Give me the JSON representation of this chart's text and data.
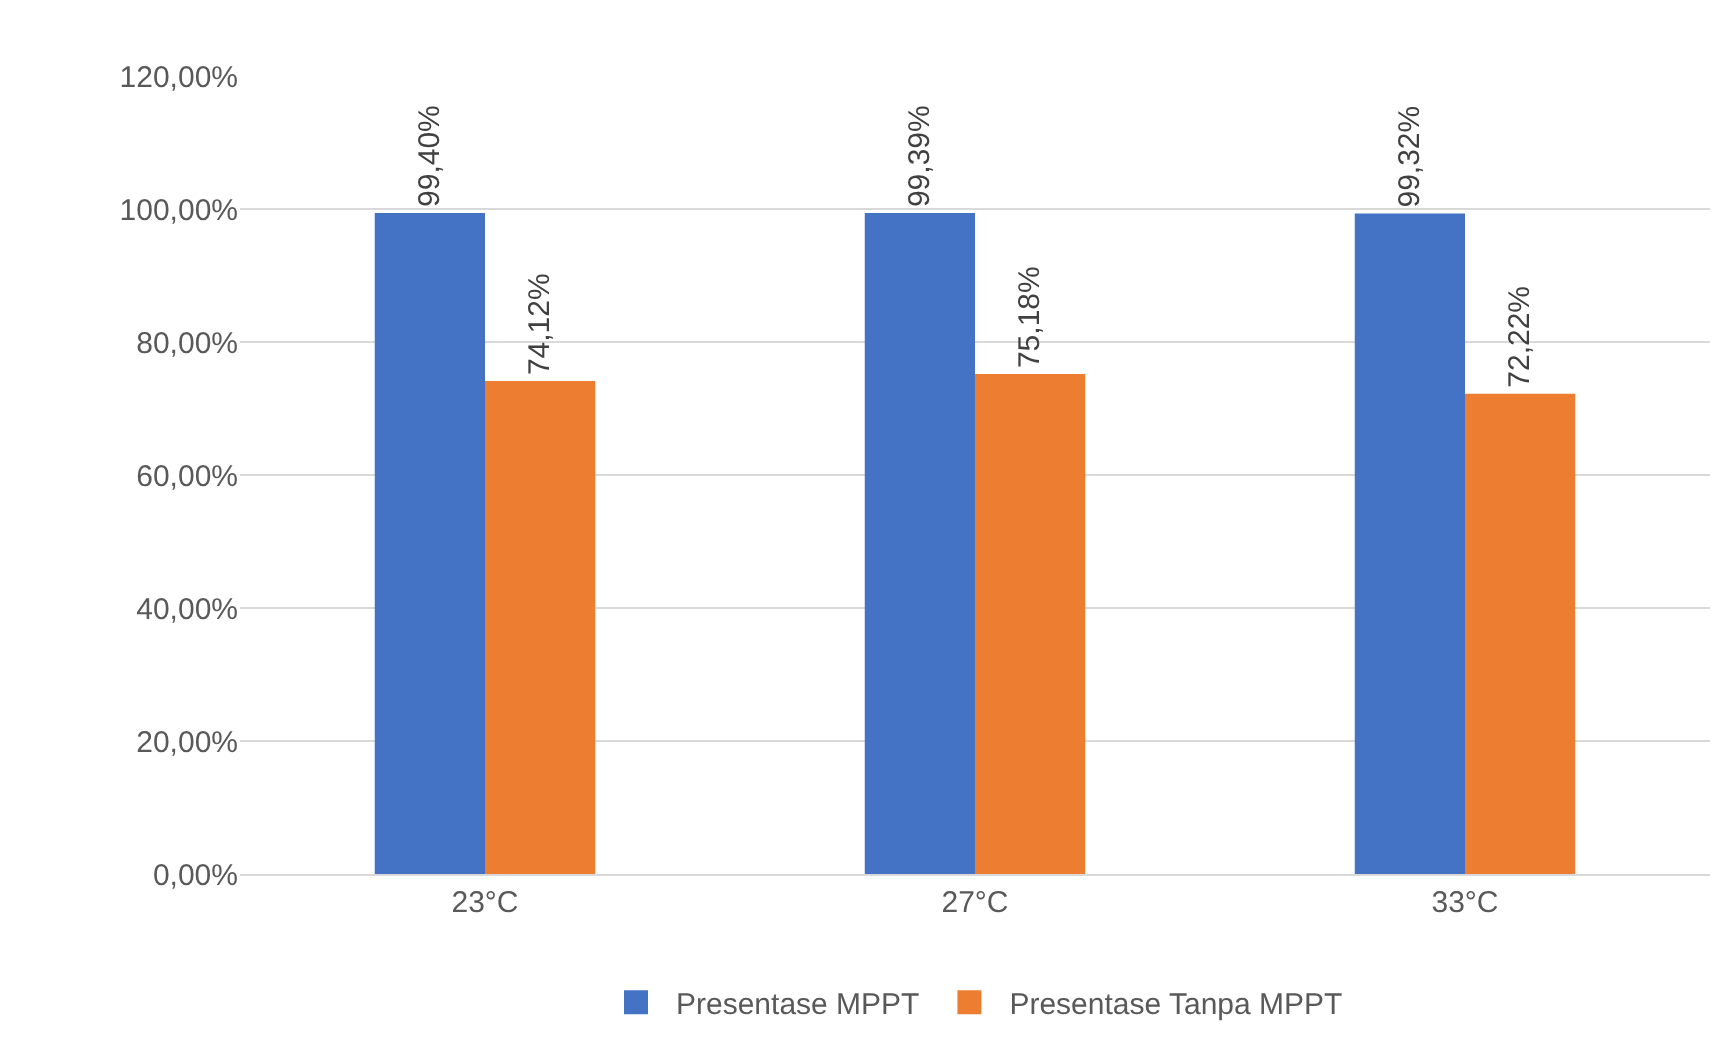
{
  "chart_data": {
    "type": "bar",
    "categories": [
      "23°C",
      "27°C",
      "33°C"
    ],
    "series": [
      {
        "name": "Presentase MPPT",
        "color": "#4472c4",
        "values": [
          99.4,
          99.39,
          99.32
        ],
        "value_labels": [
          "99,40%",
          "99,39%",
          "99,32%"
        ]
      },
      {
        "name": "Presentase Tanpa MPPT",
        "color": "#ed7d31",
        "values": [
          74.12,
          75.18,
          72.22
        ],
        "value_labels": [
          "74,12%",
          "75,18%",
          "72,22%"
        ]
      }
    ],
    "ylim": [
      0,
      120
    ],
    "yticks": [
      {
        "value": 0,
        "label": "0,00%"
      },
      {
        "value": 20,
        "label": "20,00%"
      },
      {
        "value": 40,
        "label": "40,00%"
      },
      {
        "value": 60,
        "label": "60,00%"
      },
      {
        "value": 80,
        "label": "80,00%"
      },
      {
        "value": 100,
        "label": "100,00%"
      },
      {
        "value": 120,
        "label": "120,00%"
      }
    ],
    "grid": "y",
    "legend": "bottom"
  }
}
